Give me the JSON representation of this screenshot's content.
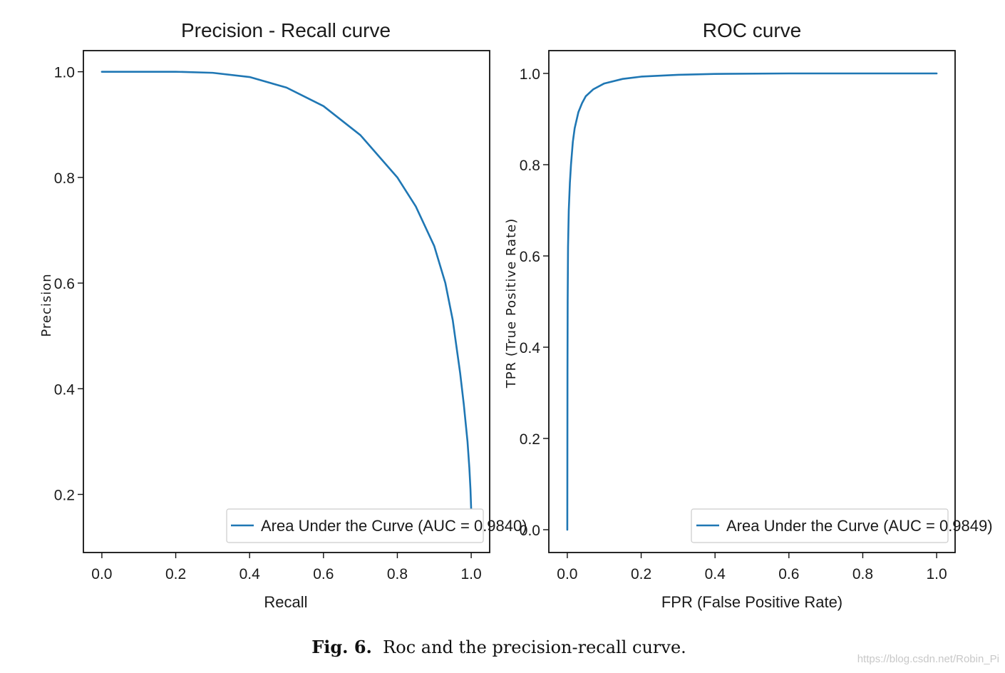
{
  "chart_data": [
    {
      "type": "line",
      "title": "Precision - Recall curve",
      "xlabel": "Recall",
      "ylabel": "Precision",
      "xlim": [
        -0.05,
        1.05
      ],
      "ylim": [
        0.09,
        1.04
      ],
      "xticks": [
        "0.0",
        "0.2",
        "0.4",
        "0.6",
        "0.8",
        "1.0"
      ],
      "xtick_values": [
        0.0,
        0.2,
        0.4,
        0.6,
        0.8,
        1.0
      ],
      "yticks": [
        "0.2",
        "0.4",
        "0.6",
        "0.8",
        "1.0"
      ],
      "ytick_values": [
        0.2,
        0.4,
        0.6,
        0.8,
        1.0
      ],
      "grid": false,
      "legend_position": "lower-right",
      "series": [
        {
          "name": "Area Under the Curve (AUC = 0.9840)",
          "color": "#1f77b4",
          "x": [
            0.0,
            0.1,
            0.2,
            0.3,
            0.4,
            0.5,
            0.6,
            0.7,
            0.8,
            0.85,
            0.9,
            0.93,
            0.95,
            0.97,
            0.98,
            0.99,
            0.995,
            0.998,
            1.0
          ],
          "y": [
            1.0,
            1.0,
            1.0,
            0.998,
            0.99,
            0.97,
            0.935,
            0.88,
            0.8,
            0.745,
            0.67,
            0.6,
            0.53,
            0.43,
            0.37,
            0.3,
            0.25,
            0.21,
            0.17
          ]
        }
      ]
    },
    {
      "type": "line",
      "title": "ROC curve",
      "xlabel": "FPR (False Positive Rate)",
      "ylabel": "TPR (True Positive Rate)",
      "xlim": [
        -0.05,
        1.05
      ],
      "ylim": [
        -0.05,
        1.05
      ],
      "xticks": [
        "0.0",
        "0.2",
        "0.4",
        "0.6",
        "0.8",
        "1.0"
      ],
      "xtick_values": [
        0.0,
        0.2,
        0.4,
        0.6,
        0.8,
        1.0
      ],
      "yticks": [
        "0.0",
        "0.2",
        "0.4",
        "0.6",
        "0.8",
        "1.0"
      ],
      "ytick_values": [
        0.0,
        0.2,
        0.4,
        0.6,
        0.8,
        1.0
      ],
      "grid": false,
      "legend_position": "lower-right",
      "series": [
        {
          "name": "Area Under the Curve (AUC = 0.9849)",
          "color": "#1f77b4",
          "x": [
            0.0,
            0.0005,
            0.001,
            0.002,
            0.004,
            0.007,
            0.01,
            0.015,
            0.02,
            0.03,
            0.04,
            0.05,
            0.07,
            0.1,
            0.15,
            0.2,
            0.3,
            0.4,
            0.6,
            0.8,
            1.0
          ],
          "y": [
            0.0,
            0.35,
            0.5,
            0.62,
            0.7,
            0.76,
            0.8,
            0.85,
            0.88,
            0.915,
            0.935,
            0.95,
            0.965,
            0.978,
            0.988,
            0.993,
            0.997,
            0.999,
            1.0,
            1.0,
            1.0
          ]
        }
      ]
    }
  ],
  "caption": {
    "label": "Fig. 6.",
    "text": "Roc and the precision-recall curve."
  },
  "watermark": "https://blog.csdn.net/Robin_Pi"
}
